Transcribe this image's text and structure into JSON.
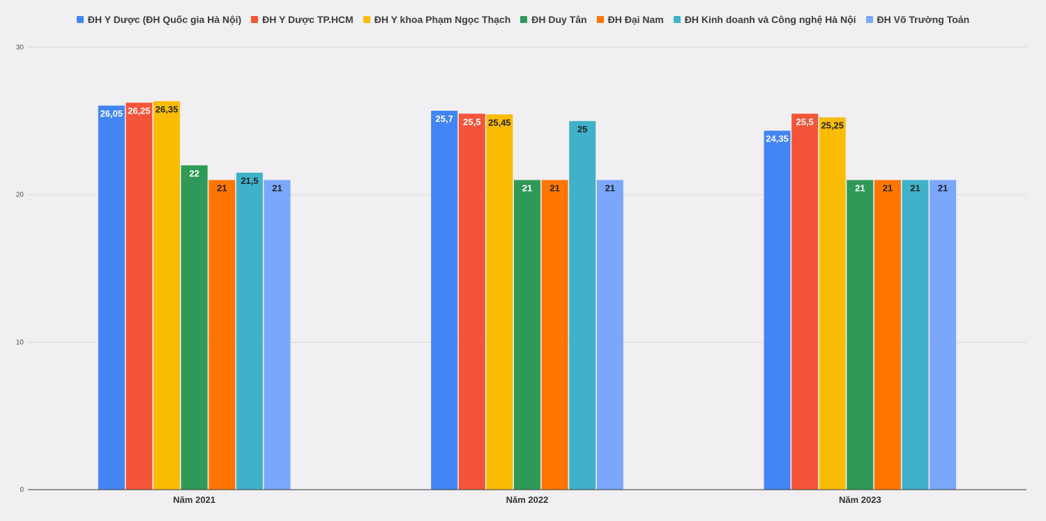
{
  "chart_data": {
    "type": "bar",
    "categories": [
      "Năm 2021",
      "Năm 2022",
      "Năm 2023"
    ],
    "series": [
      {
        "name": "ĐH Y Dược (ĐH Quốc gia Hà Nội)",
        "color": "#4285f4",
        "values": [
          26.05,
          25.7,
          24.35
        ],
        "labels": [
          "26,05",
          "25,7",
          "24,35"
        ],
        "label_color": "#ffffff"
      },
      {
        "name": "ĐH Y Dược TP.HCM",
        "color": "#f4553a",
        "values": [
          26.25,
          25.5,
          25.5
        ],
        "labels": [
          "26,25",
          "25,5",
          "25,5"
        ],
        "label_color": "#ffffff"
      },
      {
        "name": "ĐH Y khoa Phạm Ngọc Thạch",
        "color": "#fbbc04",
        "values": [
          26.35,
          25.45,
          25.25
        ],
        "labels": [
          "26,35",
          "25,45",
          "25,25"
        ],
        "label_color": "#222222"
      },
      {
        "name": "ĐH Duy Tân",
        "color": "#2f9a57",
        "values": [
          22,
          21,
          21
        ],
        "labels": [
          "22",
          "21",
          "21"
        ],
        "label_color": "#ffffff"
      },
      {
        "name": "ĐH Đại Nam",
        "color": "#ff7500",
        "values": [
          21,
          21,
          21
        ],
        "labels": [
          "21",
          "21",
          "21"
        ],
        "label_color": "#222222"
      },
      {
        "name": "ĐH Kinh doanh và Công nghệ Hà Nội",
        "color": "#3fb1c8",
        "values": [
          21.5,
          25,
          21
        ],
        "labels": [
          "21,5",
          "25",
          "21"
        ],
        "label_color": "#222222"
      },
      {
        "name": "ĐH Võ Trường Toản",
        "color": "#7aa7fb",
        "values": [
          21,
          21,
          21
        ],
        "labels": [
          "21",
          "21",
          "21"
        ],
        "label_color": "#222222"
      }
    ],
    "ylim": [
      0,
      30
    ],
    "yticks": [
      "0",
      "10",
      "20",
      "30"
    ],
    "grid": true,
    "legend_position": "top"
  }
}
